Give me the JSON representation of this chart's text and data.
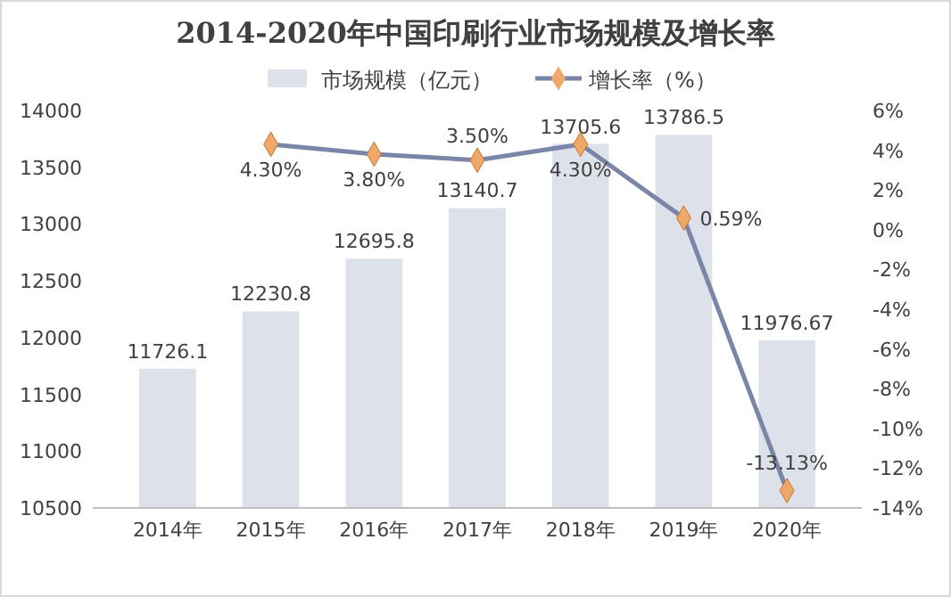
{
  "chart_data": {
    "type": "bar",
    "title": "2014-2020年中国印刷行业市场规模及增长率",
    "categories": [
      "2014年",
      "2015年",
      "2016年",
      "2017年",
      "2018年",
      "2019年",
      "2020年"
    ],
    "series": [
      {
        "name": "市场规模（亿元）",
        "color": "#dde1ea",
        "values": [
          11726.1,
          12230.8,
          12695.8,
          13140.7,
          13705.6,
          13786.5,
          11976.67
        ],
        "value_labels": [
          "11726.1",
          "12230.8",
          "12695.8",
          "13140.7",
          "13705.6",
          "13786.5",
          "11976.67"
        ]
      },
      {
        "name": "增长率（%）",
        "type": "line",
        "axis": "y2",
        "color": "#7a86a8",
        "values": [
          null,
          4.3,
          3.8,
          3.5,
          4.3,
          0.59,
          -13.13
        ],
        "value_labels": [
          null,
          "4.30%",
          "3.80%",
          "3.50%",
          "4.30%",
          "0.59%",
          "-13.13%"
        ]
      }
    ],
    "ylim": [
      10500,
      14000
    ],
    "yticks": [
      10500,
      11000,
      11500,
      12000,
      12500,
      13000,
      13500,
      14000
    ],
    "y2lim": [
      -14,
      6
    ],
    "y2ticks": [
      {
        "value": -14,
        "label": "-14%"
      },
      {
        "value": -12,
        "label": "-12%"
      },
      {
        "value": -10,
        "label": "-10%"
      },
      {
        "value": -8,
        "label": "-8%"
      },
      {
        "value": -6,
        "label": "-6%"
      },
      {
        "value": -4,
        "label": "-4%"
      },
      {
        "value": -2,
        "label": "-2%"
      },
      {
        "value": 0,
        "label": "0%"
      },
      {
        "value": 2,
        "label": "2%"
      },
      {
        "value": 4,
        "label": "4%"
      },
      {
        "value": 6,
        "label": "6%"
      }
    ],
    "legend": "top",
    "marker": "diamond"
  }
}
